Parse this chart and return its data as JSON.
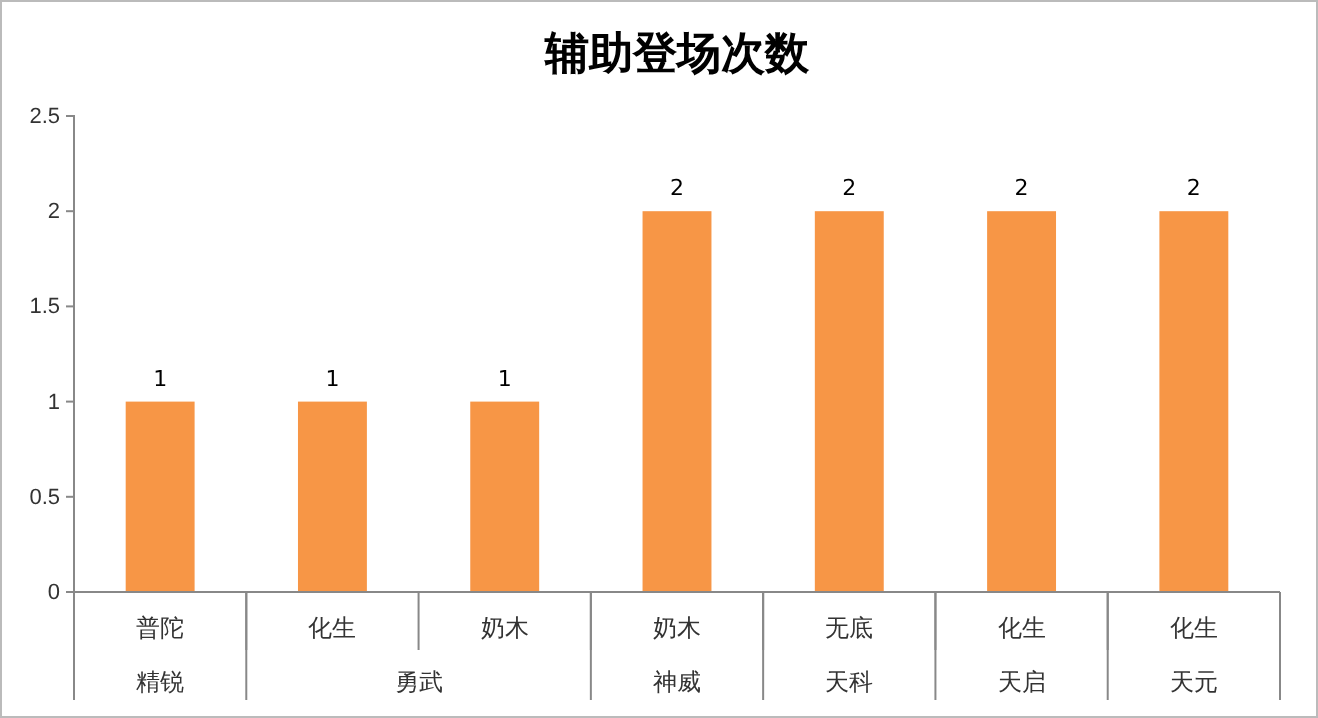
{
  "chart_data": {
    "type": "bar",
    "title": "辅助登场次数",
    "categories": [
      "普陀",
      "化生",
      "奶木",
      "奶木",
      "无底",
      "化生",
      "化生"
    ],
    "values": [
      1,
      1,
      1,
      2,
      2,
      2,
      2
    ],
    "color": "#f79646",
    "ylim": [
      0,
      2.5
    ],
    "yticks": [
      0,
      0.5,
      1,
      1.5,
      2,
      2.5
    ],
    "data_labels": true,
    "annotations": [
      "精锐",
      "勇武",
      "神威",
      "天科",
      "天启",
      "天元"
    ]
  }
}
